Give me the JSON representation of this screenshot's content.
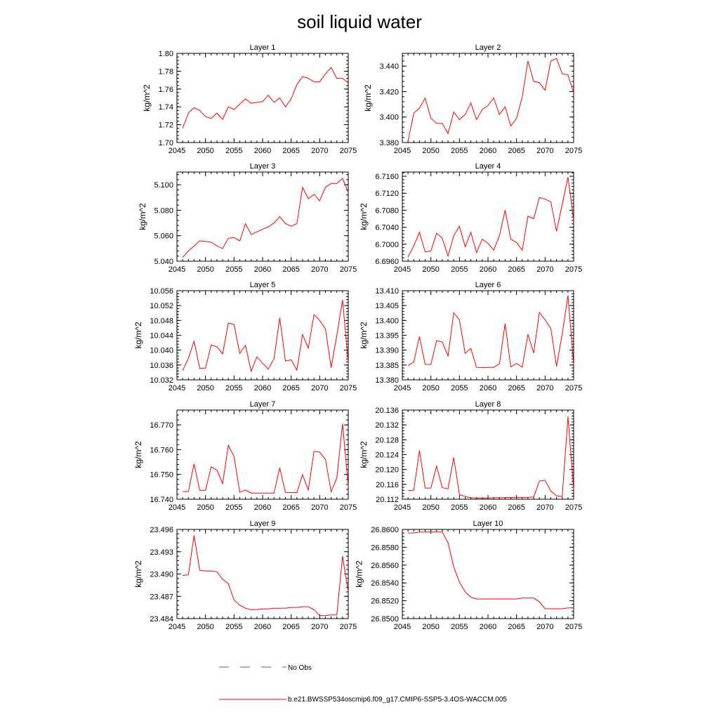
{
  "title": "soil liquid water",
  "colors": {
    "model_line": "#ff0000",
    "obs_line": "#3355ff",
    "axis": "#000000"
  },
  "legend": {
    "obs_label": "No Obs",
    "model_label": "b.e21.BWSSP534oscmip6.f09_g17.CMIP6-SSP5-3.4OS-WACCM.005"
  },
  "chart_data": [
    {
      "type": "line",
      "title": "Layer 1",
      "ylabel": "kg/m^2",
      "xlabel": "",
      "xlim": [
        2045,
        2075
      ],
      "ylim": [
        1.7,
        1.8
      ],
      "grid": false,
      "xticks": [
        "2045",
        "2050",
        "2055",
        "2060",
        "2065",
        "2070",
        "2075"
      ],
      "yticks": [
        "1.70",
        "1.72",
        "1.74",
        "1.76",
        "1.78",
        "1.80"
      ],
      "series": [
        {
          "name": "b.e21.BWSSP534oscmip6.f09_g17.CMIP6-SSP5-3.4OS-WACCM.005",
          "x": [
            2046,
            2047,
            2048,
            2049,
            2050,
            2051,
            2052,
            2053,
            2054,
            2055,
            2056,
            2057,
            2058,
            2059,
            2060,
            2061,
            2062,
            2063,
            2064,
            2065,
            2066,
            2067,
            2068,
            2069,
            2070,
            2071,
            2072,
            2073,
            2074,
            2075
          ],
          "values": [
            1.716,
            1.733,
            1.739,
            1.736,
            1.729,
            1.727,
            1.733,
            1.726,
            1.74,
            1.737,
            1.743,
            1.749,
            1.744,
            1.745,
            1.746,
            1.753,
            1.745,
            1.75,
            1.74,
            1.749,
            1.765,
            1.774,
            1.772,
            1.768,
            1.768,
            1.777,
            1.784,
            1.772,
            1.772,
            1.767
          ]
        }
      ]
    },
    {
      "type": "line",
      "title": "Layer 2",
      "ylabel": "kg/m^2",
      "xlabel": "",
      "xlim": [
        2045,
        2075
      ],
      "ylim": [
        3.38,
        3.45
      ],
      "grid": false,
      "xticks": [
        "2045",
        "2050",
        "2055",
        "2060",
        "2065",
        "2070",
        "2075"
      ],
      "yticks": [
        "3.380",
        "3.400",
        "3.420",
        "3.440"
      ],
      "series": [
        {
          "name": "b.e21.BWSSP534oscmip6.f09_g17.CMIP6-SSP5-3.4OS-WACCM.005",
          "x": [
            2046,
            2047,
            2048,
            2049,
            2050,
            2051,
            2052,
            2053,
            2054,
            2055,
            2056,
            2057,
            2058,
            2059,
            2060,
            2061,
            2062,
            2063,
            2064,
            2065,
            2066,
            2067,
            2068,
            2069,
            2070,
            2071,
            2072,
            2073,
            2074,
            2075
          ],
          "values": [
            3.381,
            3.403,
            3.407,
            3.415,
            3.399,
            3.395,
            3.395,
            3.387,
            3.404,
            3.398,
            3.402,
            3.411,
            3.398,
            3.406,
            3.409,
            3.415,
            3.402,
            3.408,
            3.393,
            3.399,
            3.416,
            3.444,
            3.428,
            3.427,
            3.421,
            3.444,
            3.446,
            3.434,
            3.433,
            3.419
          ]
        }
      ]
    },
    {
      "type": "line",
      "title": "Layer 3",
      "ylabel": "kg/m^2",
      "xlabel": "",
      "xlim": [
        2045,
        2075
      ],
      "ylim": [
        5.04,
        5.11
      ],
      "grid": false,
      "xticks": [
        "2045",
        "2050",
        "2055",
        "2060",
        "2065",
        "2070",
        "2075"
      ],
      "yticks": [
        "5.040",
        "5.060",
        "5.080",
        "5.100"
      ],
      "series": [
        {
          "name": "b.e21.BWSSP534oscmip6.f09_g17.CMIP6-SSP5-3.4OS-WACCM.005",
          "x": [
            2046,
            2047,
            2048,
            2049,
            2050,
            2051,
            2052,
            2053,
            2054,
            2055,
            2056,
            2057,
            2058,
            2059,
            2060,
            2061,
            2062,
            2063,
            2064,
            2065,
            2066,
            2067,
            2068,
            2069,
            2070,
            2071,
            2072,
            2073,
            2074,
            2075
          ],
          "values": [
            5.043,
            5.048,
            5.052,
            5.056,
            5.0555,
            5.055,
            5.052,
            5.05,
            5.058,
            5.0585,
            5.056,
            5.0695,
            5.061,
            5.063,
            5.065,
            5.067,
            5.07,
            5.075,
            5.0695,
            5.0675,
            5.0695,
            5.098,
            5.089,
            5.0925,
            5.0875,
            5.098,
            5.101,
            5.101,
            5.105,
            5.094
          ]
        }
      ]
    },
    {
      "type": "line",
      "title": "Layer 4",
      "ylabel": "kg/m^2",
      "xlabel": "",
      "xlim": [
        2045,
        2075
      ],
      "ylim": [
        6.696,
        6.717
      ],
      "grid": false,
      "xticks": [
        "2045",
        "2050",
        "2055",
        "2060",
        "2065",
        "2070",
        "2075"
      ],
      "yticks": [
        "6.6960",
        "6.7000",
        "6.7040",
        "6.7080",
        "6.7120",
        "6.7160"
      ],
      "series": [
        {
          "name": "b.e21.BWSSP534oscmip6.f09_g17.CMIP6-SSP5-3.4OS-WACCM.005",
          "x": [
            2046,
            2047,
            2048,
            2049,
            2050,
            2051,
            2052,
            2053,
            2054,
            2055,
            2056,
            2057,
            2058,
            2059,
            2060,
            2061,
            2062,
            2063,
            2064,
            2065,
            2066,
            2067,
            2068,
            2069,
            2070,
            2071,
            2072,
            2073,
            2074,
            2075
          ],
          "values": [
            6.697,
            6.6996,
            6.7028,
            6.6982,
            6.6984,
            6.7026,
            6.7014,
            6.6972,
            6.702,
            6.7042,
            6.6994,
            6.7028,
            6.698,
            6.7012,
            6.7002,
            6.6986,
            6.702,
            6.708,
            6.7012,
            6.7004,
            6.6986,
            6.7066,
            6.706,
            6.711,
            6.7106,
            6.71,
            6.703,
            6.7094,
            6.7158,
            6.7056
          ]
        }
      ]
    },
    {
      "type": "line",
      "title": "Layer 5",
      "ylabel": "kg/m^2",
      "xlabel": "",
      "xlim": [
        2045,
        2075
      ],
      "ylim": [
        10.032,
        10.056
      ],
      "grid": false,
      "xticks": [
        "2045",
        "2050",
        "2055",
        "2060",
        "2065",
        "2070",
        "2075"
      ],
      "yticks": [
        "10.032",
        "10.036",
        "10.040",
        "10.044",
        "10.048",
        "10.052",
        "10.056"
      ],
      "series": [
        {
          "name": "b.e21.BWSSP534oscmip6.f09_g17.CMIP6-SSP5-3.4OS-WACCM.005",
          "x": [
            2046,
            2047,
            2048,
            2049,
            2050,
            2051,
            2052,
            2053,
            2054,
            2055,
            2056,
            2057,
            2058,
            2059,
            2060,
            2061,
            2062,
            2063,
            2064,
            2065,
            2066,
            2067,
            2068,
            2069,
            2070,
            2071,
            2072,
            2073,
            2074,
            2075
          ],
          "values": [
            10.0345,
            10.0378,
            10.0424,
            10.0351,
            10.0352,
            10.0414,
            10.0409,
            10.039,
            10.0473,
            10.0469,
            10.0391,
            10.0413,
            10.0343,
            10.0382,
            10.0365,
            10.0349,
            10.0377,
            10.0487,
            10.0371,
            10.0374,
            10.0346,
            10.0442,
            10.0405,
            10.0496,
            10.048,
            10.0457,
            10.0353,
            10.044,
            10.0535,
            10.0365
          ]
        }
      ]
    },
    {
      "type": "line",
      "title": "Layer 6",
      "ylabel": "kg/m^2",
      "xlabel": "",
      "xlim": [
        2045,
        2075
      ],
      "ylim": [
        13.38,
        13.41
      ],
      "grid": false,
      "xticks": [
        "2045",
        "2050",
        "2055",
        "2060",
        "2065",
        "2070",
        "2075"
      ],
      "yticks": [
        "13.380",
        "13.385",
        "13.390",
        "13.395",
        "13.400",
        "13.405",
        "13.410"
      ],
      "series": [
        {
          "name": "b.e21.BWSSP534oscmip6.f09_g17.CMIP6-SSP5-3.4OS-WACCM.005",
          "x": [
            2046,
            2047,
            2048,
            2049,
            2050,
            2051,
            2052,
            2053,
            2054,
            2055,
            2056,
            2057,
            2058,
            2059,
            2060,
            2061,
            2062,
            2063,
            2064,
            2065,
            2066,
            2067,
            2068,
            2069,
            2070,
            2071,
            2072,
            2073,
            2074,
            2075
          ],
          "values": [
            13.3848,
            13.386,
            13.3946,
            13.3852,
            13.3852,
            13.3932,
            13.3927,
            13.388,
            13.4026,
            13.4002,
            13.3889,
            13.3906,
            13.3842,
            13.3841,
            13.3842,
            13.3842,
            13.3854,
            13.3989,
            13.3844,
            13.3855,
            13.3843,
            13.3953,
            13.389,
            13.4027,
            13.4002,
            13.3973,
            13.3845,
            13.3955,
            13.4084,
            13.385
          ]
        }
      ]
    },
    {
      "type": "line",
      "title": "Layer 7",
      "ylabel": "kg/m^2",
      "xlabel": "",
      "xlim": [
        2045,
        2075
      ],
      "ylim": [
        16.74,
        16.776
      ],
      "grid": false,
      "xticks": [
        "2045",
        "2050",
        "2055",
        "2060",
        "2065",
        "2070",
        "2075"
      ],
      "yticks": [
        "16.740",
        "16.750",
        "16.760",
        "16.770"
      ],
      "series": [
        {
          "name": "b.e21.BWSSP534oscmip6.f09_g17.CMIP6-SSP5-3.4OS-WACCM.005",
          "x": [
            2046,
            2047,
            2048,
            2049,
            2050,
            2051,
            2052,
            2053,
            2054,
            2055,
            2056,
            2057,
            2058,
            2059,
            2060,
            2061,
            2062,
            2063,
            2064,
            2065,
            2066,
            2067,
            2068,
            2069,
            2070,
            2071,
            2072,
            2073,
            2074,
            2075
          ],
          "values": [
            16.7431,
            16.7431,
            16.7543,
            16.7436,
            16.7436,
            16.7531,
            16.7518,
            16.7463,
            16.7617,
            16.7573,
            16.7428,
            16.7437,
            16.7425,
            16.7425,
            16.7425,
            16.7425,
            16.7425,
            16.7527,
            16.7428,
            16.7427,
            16.7427,
            16.7499,
            16.7437,
            16.7593,
            16.759,
            16.7561,
            16.743,
            16.7486,
            16.7705,
            16.7452
          ]
        }
      ]
    },
    {
      "type": "line",
      "title": "Layer 8",
      "ylabel": "kg/m^2",
      "xlabel": "",
      "xlim": [
        2045,
        2075
      ],
      "ylim": [
        20.112,
        20.136
      ],
      "grid": false,
      "xticks": [
        "2045",
        "2050",
        "2055",
        "2060",
        "2065",
        "2070",
        "2075"
      ],
      "yticks": [
        "20.112",
        "20.116",
        "20.120",
        "20.124",
        "20.128",
        "20.132",
        "20.136"
      ],
      "series": [
        {
          "name": "b.e21.BWSSP534oscmip6.f09_g17.CMIP6-SSP5-3.4OS-WACCM.005",
          "x": [
            2046,
            2047,
            2048,
            2049,
            2050,
            2051,
            2052,
            2053,
            2054,
            2055,
            2056,
            2057,
            2058,
            2059,
            2060,
            2061,
            2062,
            2063,
            2064,
            2065,
            2066,
            2067,
            2068,
            2069,
            2070,
            2071,
            2072,
            2073,
            2074,
            2075
          ],
          "values": [
            20.1143,
            20.1144,
            20.1251,
            20.115,
            20.115,
            20.1209,
            20.1151,
            20.1148,
            20.1232,
            20.1133,
            20.1127,
            20.1124,
            20.1123,
            20.1123,
            20.1123,
            20.1124,
            20.1124,
            20.1124,
            20.1125,
            20.1125,
            20.1125,
            20.1125,
            20.1126,
            20.1169,
            20.1171,
            20.1142,
            20.1129,
            20.1127,
            20.1342,
            20.1146
          ]
        }
      ]
    },
    {
      "type": "line",
      "title": "Layer 9",
      "ylabel": "kg/m^2",
      "xlabel": "",
      "xlim": [
        2045,
        2075
      ],
      "ylim": [
        23.484,
        23.496
      ],
      "grid": false,
      "xticks": [
        "2045",
        "2050",
        "2055",
        "2060",
        "2065",
        "2070",
        "2075"
      ],
      "yticks": [
        "23.484",
        "23.487",
        "23.490",
        "23.493",
        "23.496"
      ],
      "series": [
        {
          "name": "b.e21.BWSSP534oscmip6.f09_g17.CMIP6-SSP5-3.4OS-WACCM.005",
          "x": [
            2046,
            2047,
            2048,
            2049,
            2050,
            2051,
            2052,
            2053,
            2054,
            2055,
            2056,
            2057,
            2058,
            2059,
            2060,
            2061,
            2062,
            2063,
            2064,
            2065,
            2066,
            2067,
            2068,
            2069,
            2070,
            2071,
            2072,
            2073,
            2074,
            2075
          ],
          "values": [
            23.4898,
            23.4899,
            23.4952,
            23.4905,
            23.4904,
            23.4904,
            23.4903,
            23.4893,
            23.4887,
            23.4865,
            23.4858,
            23.4854,
            23.4852,
            23.4852,
            23.4853,
            23.4853,
            23.4854,
            23.4854,
            23.4854,
            23.4855,
            23.4855,
            23.4856,
            23.4856,
            23.4852,
            23.4844,
            23.4844,
            23.4845,
            23.4845,
            23.4924,
            23.4876
          ]
        }
      ]
    },
    {
      "type": "line",
      "title": "Layer 10",
      "ylabel": "kg/m^2",
      "xlabel": "",
      "xlim": [
        2045,
        2075
      ],
      "ylim": [
        26.85,
        26.86
      ],
      "grid": false,
      "xticks": [
        "2045",
        "2050",
        "2055",
        "2060",
        "2065",
        "2070",
        "2075"
      ],
      "yticks": [
        "26.8500",
        "26.8520",
        "26.8540",
        "26.8560",
        "26.8580",
        "26.8600"
      ],
      "series": [
        {
          "name": "b.e21.BWSSP534oscmip6.f09_g17.CMIP6-SSP5-3.4OS-WACCM.005",
          "x": [
            2046,
            2047,
            2048,
            2049,
            2050,
            2051,
            2052,
            2053,
            2054,
            2055,
            2056,
            2057,
            2058,
            2059,
            2060,
            2061,
            2062,
            2063,
            2064,
            2065,
            2066,
            2067,
            2068,
            2069,
            2070,
            2071,
            2072,
            2073,
            2074,
            2075
          ],
          "values": [
            26.8596,
            26.8596,
            26.8597,
            26.8597,
            26.8597,
            26.8597,
            26.8597,
            26.8585,
            26.8558,
            26.8541,
            26.853,
            26.8524,
            26.8522,
            26.8522,
            26.8522,
            26.8522,
            26.8522,
            26.8522,
            26.8522,
            26.8522,
            26.8523,
            26.8523,
            26.8523,
            26.8519,
            26.8511,
            26.8511,
            26.8511,
            26.8511,
            26.8512,
            26.8512
          ]
        }
      ]
    }
  ]
}
